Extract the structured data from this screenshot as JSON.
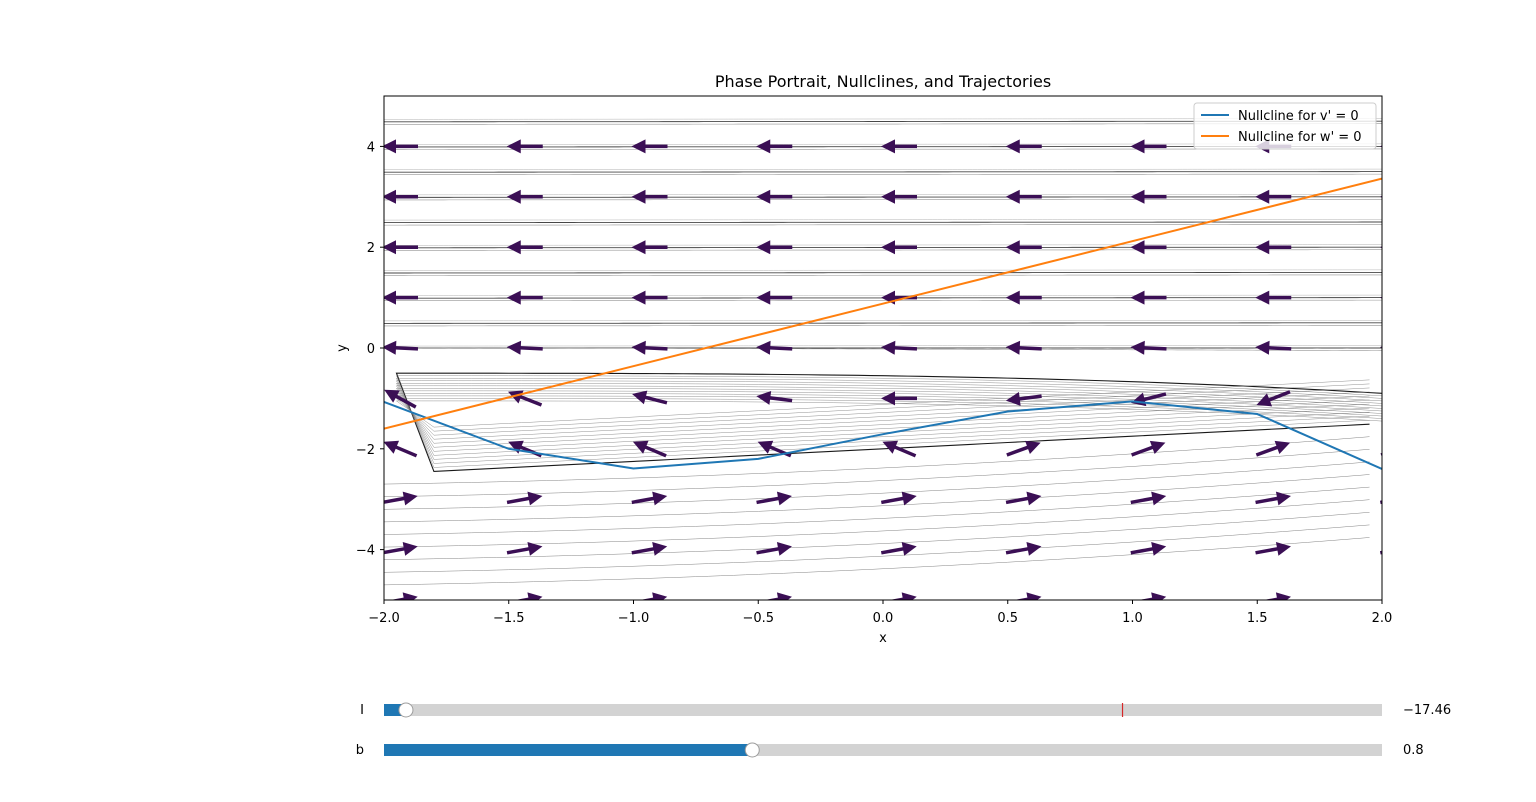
{
  "chart_data": {
    "type": "line",
    "title": "Phase Portrait, Nullclines, and Trajectories",
    "xlabel": "x",
    "ylabel": "y",
    "xlim": [
      -2.0,
      2.0
    ],
    "ylim": [
      -5.0,
      5.0
    ],
    "xticks": [
      -2.0,
      -1.5,
      -1.0,
      -0.5,
      0.0,
      0.5,
      1.0,
      1.5,
      2.0
    ],
    "xtick_labels": [
      "−2.0",
      "−1.5",
      "−1.0",
      "−0.5",
      "0.0",
      "0.5",
      "1.0",
      "1.5",
      "2.0"
    ],
    "yticks": [
      -4,
      -2,
      0,
      2,
      4
    ],
    "ytick_labels": [
      "−4",
      "−2",
      "0",
      "2",
      "4"
    ],
    "grid": false,
    "legend_placement": "top-right",
    "series": [
      {
        "name": "Nullcline for v' = 0",
        "color": "#1f77b4",
        "x": [
          -2.0,
          -1.5,
          -1.0,
          -0.5,
          0.0,
          0.5,
          1.0,
          1.5,
          2.0
        ],
        "y": [
          -1.07,
          -2.0,
          -2.39,
          -2.2,
          -1.71,
          -1.26,
          -1.06,
          -1.31,
          -2.4
        ]
      },
      {
        "name": "Nullcline for w' = 0",
        "color": "#ff7f0e",
        "x": [
          -2.0,
          2.0
        ],
        "y": [
          -1.6,
          3.36
        ]
      }
    ],
    "quiver_color": "#3b0f55",
    "streamline_color": "#000000"
  },
  "sliders": [
    {
      "label": "I",
      "value_text": "−17.46",
      "fraction": 0.022,
      "marker_fraction": 0.74,
      "fill_color": "#1f77b4",
      "marker_color": "#d62728"
    },
    {
      "label": "b",
      "value_text": "0.8",
      "fraction": 0.369,
      "fill_color": "#1f77b4"
    }
  ]
}
